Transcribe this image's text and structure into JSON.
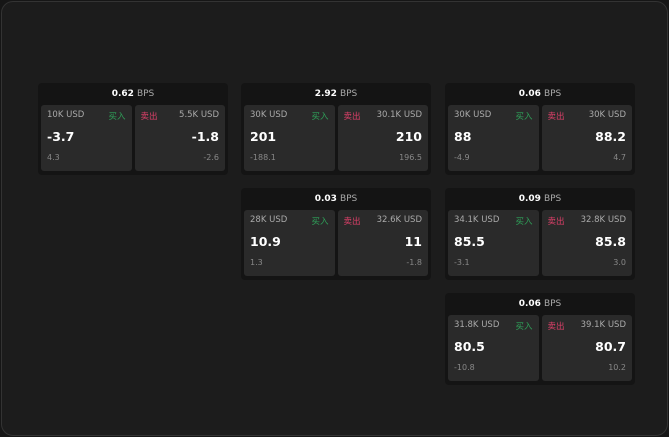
{
  "buy_label": "买入",
  "sell_label": "卖出",
  "unit": "BPS",
  "cards": [
    {
      "spread": "0.62",
      "buy": {
        "size": "10K USD",
        "price": "-3.7",
        "change": "4.3"
      },
      "sell": {
        "size": "5.5K USD",
        "price": "-1.8",
        "change": "-2.6"
      }
    },
    {
      "spread": "2.92",
      "buy": {
        "size": "30K USD",
        "price": "201",
        "change": "-188.1"
      },
      "sell": {
        "size": "30.1K USD",
        "price": "210",
        "change": "196.5"
      }
    },
    {
      "spread": "0.06",
      "buy": {
        "size": "30K USD",
        "price": "88",
        "change": "-4.9"
      },
      "sell": {
        "size": "30K USD",
        "price": "88.2",
        "change": "4.7"
      }
    },
    {
      "spread": "0.03",
      "buy": {
        "size": "28K USD",
        "price": "10.9",
        "change": "1.3"
      },
      "sell": {
        "size": "32.6K USD",
        "price": "11",
        "change": "-1.8"
      }
    },
    {
      "spread": "0.09",
      "buy": {
        "size": "34.1K USD",
        "price": "85.5",
        "change": "-3.1"
      },
      "sell": {
        "size": "32.8K USD",
        "price": "85.8",
        "change": "3.0"
      }
    },
    {
      "spread": "0.06",
      "buy": {
        "size": "31.8K USD",
        "price": "80.5",
        "change": "-10.8"
      },
      "sell": {
        "size": "39.1K USD",
        "price": "80.7",
        "change": "10.2"
      }
    }
  ]
}
